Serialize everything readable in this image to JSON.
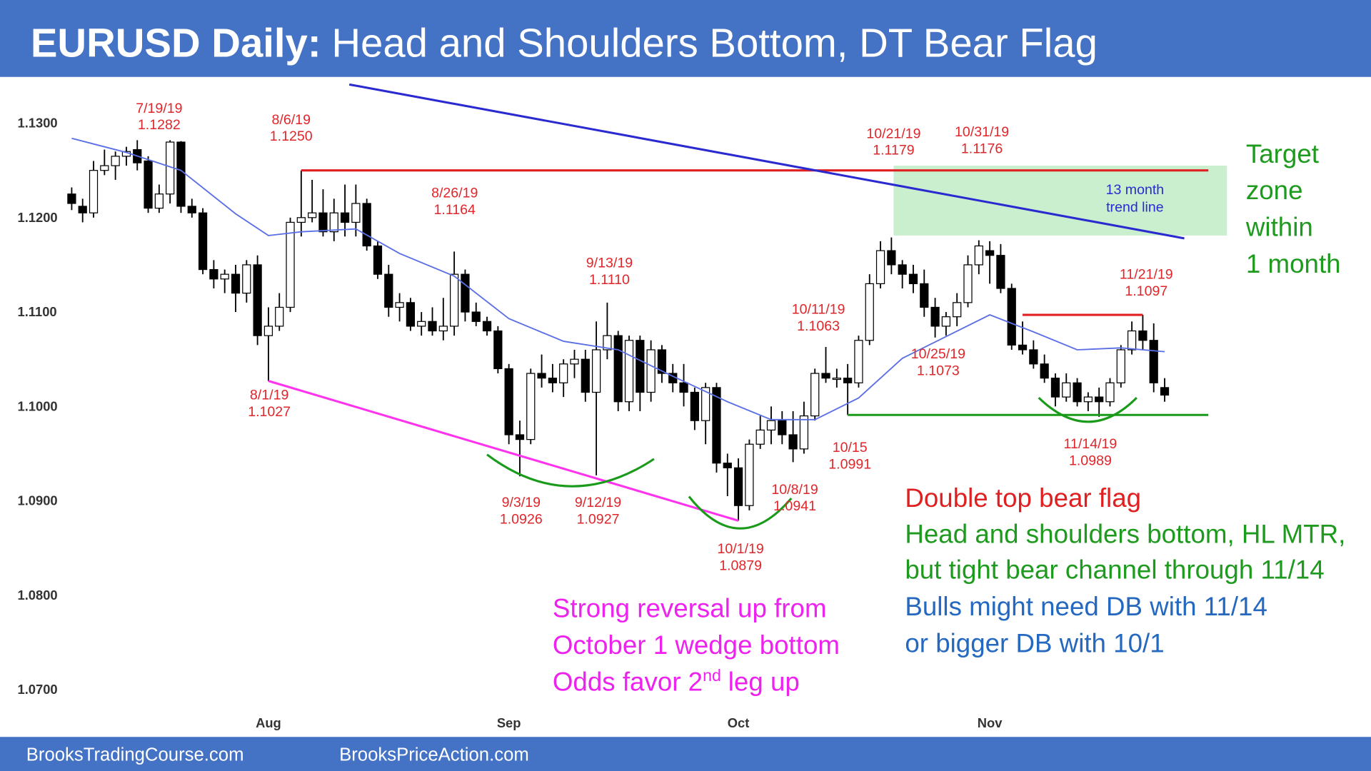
{
  "header": {
    "title_bold": "EURUSD Daily:",
    "title": "Head and Shoulders Bottom, DT Bear Flag"
  },
  "footer": [
    "BrooksTradingCourse.com",
    "BrooksPriceAction.com"
  ],
  "chart_data": {
    "type": "candlestick",
    "xlim": [
      -6.56,
      118.88
    ],
    "ylim": [
      1.065,
      1.1349
    ],
    "xticks": [
      {
        "value": 18,
        "label": "Aug"
      },
      {
        "value": 40,
        "label": "Sep"
      },
      {
        "value": 61,
        "label": "Oct"
      },
      {
        "value": 84,
        "label": "Nov"
      }
    ],
    "yticks": [
      {
        "value": 1.13,
        "label": "1.1300"
      },
      {
        "value": 1.12,
        "label": "1.1200"
      },
      {
        "value": 1.11,
        "label": "1.1100"
      },
      {
        "value": 1.1,
        "label": "1.1000"
      },
      {
        "value": 1.09,
        "label": "1.0900"
      },
      {
        "value": 1.08,
        "label": "1.0800"
      },
      {
        "value": 1.07,
        "label": "1.0700"
      }
    ],
    "up_color": "#ffffff",
    "down_color": "#000000",
    "open": [
      1.1225,
      1.1212,
      1.1205,
      1.125,
      1.1255,
      1.1265,
      1.1272,
      1.126,
      1.121,
      1.1225,
      1.128,
      1.1212,
      1.1205,
      1.1145,
      1.1135,
      1.114,
      1.112,
      1.115,
      1.1075,
      1.1085,
      1.1105,
      1.1195,
      1.12,
      1.1205,
      1.1185,
      1.1205,
      1.1195,
      1.1215,
      1.117,
      1.114,
      1.1105,
      1.111,
      1.1085,
      1.109,
      1.108,
      1.1085,
      1.114,
      1.11,
      1.109,
      1.108,
      1.104,
      1.097,
      1.0965,
      1.1035,
      1.103,
      1.1025,
      1.1045,
      1.105,
      1.1015,
      1.106,
      1.1075,
      1.1005,
      1.107,
      1.1015,
      1.106,
      1.1035,
      1.1025,
      1.1015,
      1.0985,
      1.102,
      1.094,
      1.0935,
      1.0895,
      1.096,
      1.0975,
      1.0985,
      1.097,
      1.0955,
      1.099,
      1.1035,
      1.103,
      1.103,
      1.1025,
      1.107,
      1.113,
      1.1165,
      1.115,
      1.114,
      1.113,
      1.1105,
      1.1085,
      1.1095,
      1.111,
      1.115,
      1.1165,
      1.116,
      1.1125,
      1.1065,
      1.106,
      1.1045,
      1.103,
      1.101,
      1.1025,
      1.1005,
      1.101,
      1.1005,
      1.1025,
      1.106,
      1.108,
      1.107,
      1.102
    ],
    "high": [
      1.1232,
      1.122,
      1.126,
      1.1272,
      1.127,
      1.1275,
      1.1282,
      1.1265,
      1.1235,
      1.1282,
      1.1281,
      1.122,
      1.121,
      1.1155,
      1.1145,
      1.115,
      1.1155,
      1.116,
      1.1105,
      1.112,
      1.12,
      1.125,
      1.124,
      1.123,
      1.122,
      1.1235,
      1.1235,
      1.122,
      1.1175,
      1.115,
      1.112,
      1.1115,
      1.11,
      1.1105,
      1.1115,
      1.1164,
      1.1145,
      1.111,
      1.1095,
      1.1085,
      1.1045,
      1.0985,
      1.104,
      1.1055,
      1.1045,
      1.105,
      1.106,
      1.106,
      1.109,
      1.111,
      1.108,
      1.1075,
      1.1075,
      1.107,
      1.1065,
      1.1045,
      1.1045,
      1.102,
      1.1025,
      1.1025,
      1.095,
      1.0945,
      1.0965,
      1.099,
      1.1,
      1.0995,
      1.0995,
      1.1005,
      1.104,
      1.1063,
      1.104,
      1.1045,
      1.1075,
      1.114,
      1.1175,
      1.1179,
      1.1155,
      1.115,
      1.1145,
      1.1115,
      1.11,
      1.112,
      1.116,
      1.1176,
      1.1175,
      1.1172,
      1.113,
      1.109,
      1.107,
      1.1055,
      1.1035,
      1.1035,
      1.103,
      1.1015,
      1.102,
      1.103,
      1.1065,
      1.109,
      1.1097,
      1.1088,
      1.103
    ],
    "low": [
      1.1208,
      1.1195,
      1.12,
      1.1245,
      1.124,
      1.1255,
      1.125,
      1.1205,
      1.1205,
      1.1215,
      1.1205,
      1.12,
      1.114,
      1.1125,
      1.112,
      1.11,
      1.111,
      1.1065,
      1.1027,
      1.108,
      1.11,
      1.118,
      1.1195,
      1.118,
      1.1175,
      1.118,
      1.118,
      1.1165,
      1.1135,
      1.1095,
      1.109,
      1.108,
      1.1075,
      1.1075,
      1.107,
      1.1075,
      1.109,
      1.1085,
      1.1075,
      1.1035,
      1.096,
      1.0926,
      1.096,
      1.102,
      1.1015,
      1.101,
      1.103,
      1.1005,
      1.0927,
      1.105,
      1.0995,
      1.0995,
      1.0995,
      1.1005,
      1.1025,
      1.1015,
      1.1,
      1.0975,
      1.096,
      1.093,
      1.0905,
      1.0879,
      1.089,
      1.0955,
      1.096,
      1.096,
      1.0941,
      1.095,
      1.0985,
      1.1025,
      1.102,
      1.0991,
      1.102,
      1.1065,
      1.1125,
      1.114,
      1.1125,
      1.112,
      1.1095,
      1.1073,
      1.1075,
      1.1085,
      1.1105,
      1.114,
      1.113,
      1.112,
      1.106,
      1.1055,
      1.104,
      1.1025,
      1.1,
      1.1005,
      1.1,
      1.0995,
      1.0989,
      1.1,
      1.102,
      1.1055,
      1.106,
      1.1015,
      1.1005
    ],
    "close": [
      1.1215,
      1.1205,
      1.125,
      1.1255,
      1.1265,
      1.127,
      1.1258,
      1.121,
      1.1225,
      1.128,
      1.1212,
      1.1205,
      1.1145,
      1.1135,
      1.114,
      1.112,
      1.115,
      1.1075,
      1.1085,
      1.1105,
      1.1195,
      1.12,
      1.1205,
      1.1185,
      1.1205,
      1.1195,
      1.1215,
      1.117,
      1.114,
      1.1105,
      1.111,
      1.1085,
      1.109,
      1.108,
      1.1085,
      1.114,
      1.11,
      1.109,
      1.108,
      1.104,
      1.097,
      1.0965,
      1.1035,
      1.103,
      1.1025,
      1.1045,
      1.105,
      1.1015,
      1.106,
      1.1075,
      1.1005,
      1.107,
      1.1015,
      1.106,
      1.1035,
      1.1025,
      1.1015,
      1.0985,
      1.102,
      1.094,
      1.0935,
      1.0895,
      1.096,
      1.0975,
      1.0985,
      1.097,
      1.0955,
      1.099,
      1.1035,
      1.103,
      1.103,
      1.1025,
      1.107,
      1.113,
      1.1165,
      1.115,
      1.114,
      1.113,
      1.1105,
      1.1085,
      1.1095,
      1.111,
      1.115,
      1.117,
      1.116,
      1.1125,
      1.1065,
      1.106,
      1.1045,
      1.103,
      1.101,
      1.1025,
      1.1005,
      1.101,
      1.1005,
      1.1025,
      1.106,
      1.108,
      1.107,
      1.1025,
      1.1012
    ],
    "ma": {
      "color": "#5a6ee6",
      "x": [
        0,
        5,
        10,
        15,
        18,
        21,
        26,
        30,
        35,
        40,
        45,
        50,
        55,
        60,
        64,
        68,
        72,
        76,
        80,
        84,
        88,
        92,
        96,
        100
      ],
      "values": [
        1.1284,
        1.1269,
        1.125,
        1.1204,
        1.1181,
        1.1185,
        1.1188,
        1.1162,
        1.1138,
        1.1093,
        1.1069,
        1.106,
        1.1032,
        1.1005,
        1.0986,
        1.0986,
        1.1009,
        1.1051,
        1.1074,
        1.1097,
        1.1079,
        1.106,
        1.1062,
        1.1058
      ]
    },
    "zone": {
      "color": "#c9efcf",
      "x": [
        75.2,
        105.7
      ],
      "values": [
        1.1181,
        1.1255
      ]
    },
    "lines": [
      {
        "color": "#e02020",
        "x": [
          21,
          104
        ],
        "values": [
          1.125,
          1.125
        ]
      },
      {
        "color": "#2a2ad0",
        "x": [
          25.4,
          101.8
        ],
        "values": [
          1.1341,
          1.1178
        ]
      },
      {
        "color": "#ff33ee",
        "x": [
          18,
          61
        ],
        "values": [
          1.1027,
          1.0879
        ]
      },
      {
        "color": "#1a9a1a",
        "x": [
          71,
          104
        ],
        "values": [
          1.0991,
          1.0991
        ]
      },
      {
        "color": "#e02020",
        "x": [
          87,
          98
        ],
        "values": [
          1.1097,
          1.1097
        ]
      }
    ],
    "annotation_color": "#e0262a",
    "annotations": [
      {
        "date": "7/19/19",
        "price": "1.1282"
      },
      {
        "date": "8/6/19",
        "price": "1.1250"
      },
      {
        "date": "8/1/19",
        "price": "1.1027"
      },
      {
        "date": "8/26/19",
        "price": "1.1164"
      },
      {
        "date": "9/13/19",
        "price": "1.1110"
      },
      {
        "date": "9/3/19",
        "price": "1.0926"
      },
      {
        "date": "9/12/19",
        "price": "1.0927"
      },
      {
        "date": "10/1/19",
        "price": "1.0879"
      },
      {
        "date": "10/8/19",
        "price": "1.0941"
      },
      {
        "date": "10/11/19",
        "price": "1.1063"
      },
      {
        "date": "10/15",
        "price": "1.0991"
      },
      {
        "date": "10/25/19",
        "price": "1.1073"
      },
      {
        "date": "10/21/19",
        "price": "1.1179"
      },
      {
        "date": "10/31/19",
        "price": "1.1176"
      },
      {
        "date": "11/14/19",
        "price": "1.0989"
      },
      {
        "date": "11/21/19",
        "price": "1.1097"
      }
    ],
    "trendline_label": {
      "color": "#2a2ad0",
      "lines": [
        "13 month",
        "trend line"
      ]
    },
    "notes": [
      {
        "color": "#1e9a1e",
        "lines": [
          "Target",
          "zone",
          "within",
          "1 month"
        ]
      },
      {
        "color": "#ee22ee",
        "lines": [
          "Strong reversal up from",
          "October 1 wedge bottom"
        ],
        "last": {
          "text": "Odds favor 2",
          "sup": "nd",
          "tail": "leg up"
        }
      },
      {
        "color": "#e02020",
        "lines": [
          "Double top bear flag"
        ]
      },
      {
        "color": "#1e9a1e",
        "lines": [
          "Head and shoulders bottom, HL MTR,",
          "but tight bear channel through 11/14"
        ]
      },
      {
        "color": "#2468c0",
        "lines": [
          "Bulls might need DB with 11/14",
          "or bigger DB with 10/1"
        ]
      }
    ]
  }
}
